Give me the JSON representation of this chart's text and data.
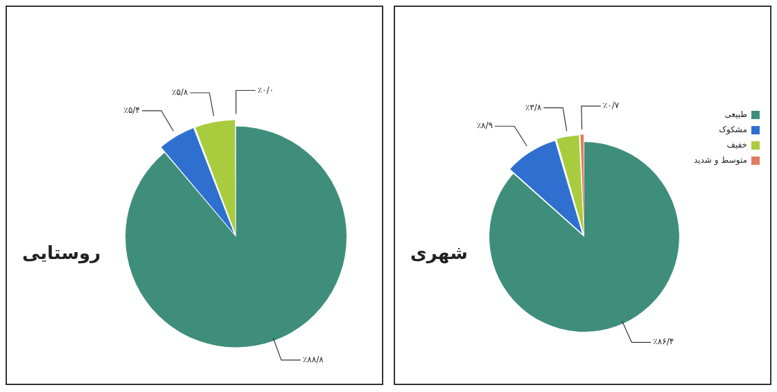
{
  "chart_data": [
    {
      "type": "pie",
      "title": "روستایی",
      "categories": [
        null,
        null,
        null,
        null
      ],
      "values": [
        88.8,
        5.4,
        5.8,
        0.0
      ],
      "value_labels": [
        "٪۸۸/۸",
        "٪۵/۴",
        "٪۵/۸",
        "٪۰/۰"
      ],
      "colors": [
        "#3f8e7b",
        "#2f6fd0",
        "#a9cc3e",
        "#e27c5e"
      ],
      "legend": false
    },
    {
      "type": "pie",
      "title": "شهری",
      "categories": [
        "طبیعی",
        "مشکوک",
        "خفیف",
        "متوسط و شدید"
      ],
      "values": [
        86.4,
        8.9,
        3.8,
        0.7
      ],
      "value_labels": [
        "٪۸۶/۴",
        "٪۸/۹",
        "٪۳/۸",
        "٪۰/۷"
      ],
      "colors": [
        "#3f8e7b",
        "#2f6fd0",
        "#a9cc3e",
        "#e27c5e"
      ],
      "legend": "top right"
    }
  ]
}
